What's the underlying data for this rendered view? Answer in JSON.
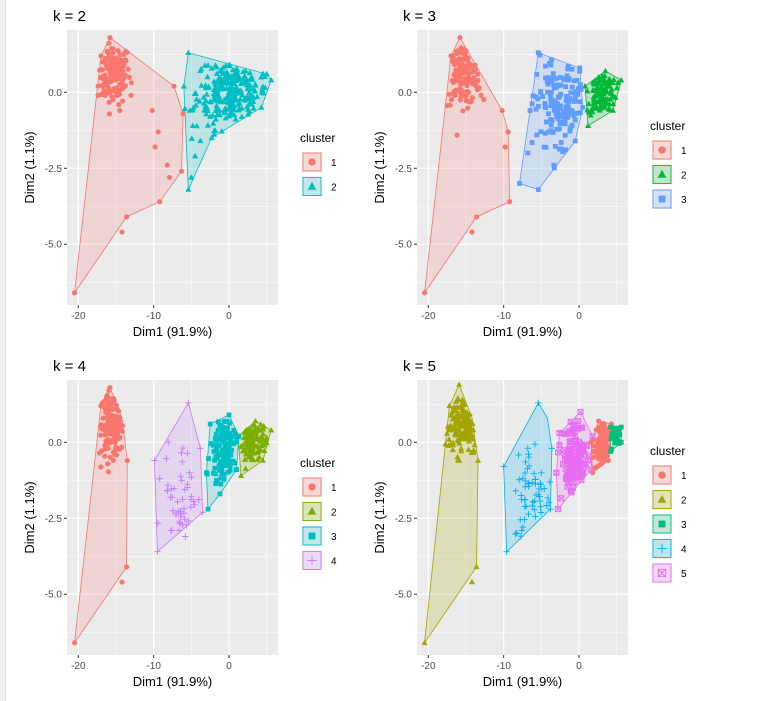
{
  "figure": {
    "x_axis": {
      "label": "Dim1 (91.9%)",
      "ticks": [
        -20,
        -10,
        0
      ],
      "range": [
        -21.5,
        6.5
      ]
    },
    "y_axis": {
      "label": "Dim2 (1.1%)",
      "ticks": [
        0.0,
        -2.5,
        -5.0
      ],
      "tick_labels": [
        "0.0",
        "-2.5",
        "-5.0"
      ],
      "range": [
        -7.0,
        2.05
      ]
    },
    "legend_title": "cluster",
    "panel_background": "#ebebeb",
    "gridline_color": "#ffffff"
  },
  "chart_data": [
    {
      "type": "scatter",
      "title": "k = 2",
      "xlabel": "Dim1 (91.9%)",
      "ylabel": "Dim2 (1.1%)",
      "xlim": [
        -21.5,
        6.5
      ],
      "ylim": [
        -7.0,
        2.05
      ],
      "grid": true,
      "legend": "right",
      "legend_entries": [
        "1",
        "2"
      ],
      "clusters": [
        {
          "name": "1",
          "color": "#F8766D",
          "shape": "circle",
          "hull": [
            [
              -20.5,
              -6.6
            ],
            [
              -13.6,
              -4.1
            ],
            [
              -9.2,
              -3.6
            ],
            [
              -6.3,
              -2.6
            ],
            [
              -6.1,
              -0.7
            ],
            [
              -7.3,
              0.2
            ],
            [
              -15.8,
              1.8
            ],
            [
              -17,
              1.2
            ]
          ],
          "blob": {
            "cx": -15.5,
            "cy": 0.6,
            "sx": 1.2,
            "sy": 0.5,
            "n": 140
          },
          "points": [
            [
              -20.5,
              -6.6
            ],
            [
              -14.2,
              -4.6
            ],
            [
              -13.6,
              -4.1
            ],
            [
              -9.2,
              -3.6
            ],
            [
              -7.9,
              -2.8
            ],
            [
              -8.2,
              -2.4
            ],
            [
              -6.3,
              -2.6
            ],
            [
              -9.8,
              -1.8
            ],
            [
              -10.2,
              -0.6
            ],
            [
              -9.4,
              -1.3
            ],
            [
              -6.1,
              -0.7
            ],
            [
              -7.3,
              0.2
            ],
            [
              -14.5,
              -0.6
            ],
            [
              -15.8,
              1.8
            ],
            [
              -17,
              1.2
            ],
            [
              -13,
              -0.1
            ]
          ]
        },
        {
          "name": "2",
          "color": "#00BFC4",
          "shape": "triangle",
          "hull": [
            [
              -5.4,
              -3.2
            ],
            [
              -2.3,
              -1.5
            ],
            [
              4.3,
              -0.5
            ],
            [
              5.6,
              0.4
            ],
            [
              5,
              0.6
            ],
            [
              -5.4,
              1.3
            ],
            [
              -6,
              0.2
            ]
          ],
          "blob": {
            "cx": 0.5,
            "cy": 0.0,
            "sx": 2.4,
            "sy": 0.6,
            "n": 260
          },
          "points": [
            [
              -5.4,
              -3.2
            ],
            [
              -5.0,
              -2.8
            ],
            [
              -4.5,
              -2.1
            ],
            [
              -3.8,
              -1.6
            ],
            [
              -2.3,
              -1.5
            ],
            [
              -6,
              0.2
            ],
            [
              -5.4,
              1.3
            ],
            [
              -5.2,
              -0.6
            ],
            [
              -4.8,
              -1.1
            ],
            [
              4.3,
              -0.5
            ],
            [
              5.6,
              0.4
            ],
            [
              5,
              0.6
            ],
            [
              -3.9,
              -0.3
            ],
            [
              -2.5,
              -0.8
            ]
          ]
        }
      ]
    },
    {
      "type": "scatter",
      "title": "k = 3",
      "xlabel": "Dim1 (91.9%)",
      "ylabel": "Dim2 (1.1%)",
      "xlim": [
        -21.5,
        6.5
      ],
      "ylim": [
        -7.0,
        2.05
      ],
      "grid": true,
      "legend": "right",
      "legend_entries": [
        "1",
        "2",
        "3"
      ],
      "clusters": [
        {
          "name": "1",
          "color": "#F8766D",
          "shape": "circle",
          "hull": [
            [
              -20.5,
              -6.6
            ],
            [
              -13.6,
              -4.1
            ],
            [
              -9.2,
              -3.6
            ],
            [
              -9.4,
              -1.3
            ],
            [
              -10.2,
              -0.6
            ],
            [
              -15.8,
              1.8
            ],
            [
              -17,
              1.2
            ]
          ],
          "blob": {
            "cx": -15.5,
            "cy": 0.6,
            "sx": 1.2,
            "sy": 0.5,
            "n": 140
          },
          "points": [
            [
              -20.5,
              -6.6
            ],
            [
              -14.2,
              -4.6
            ],
            [
              -13.6,
              -4.1
            ],
            [
              -9.2,
              -3.6
            ],
            [
              -9.8,
              -1.8
            ],
            [
              -10.2,
              -0.6
            ],
            [
              -9.4,
              -1.3
            ],
            [
              -15.8,
              1.8
            ],
            [
              -17,
              1.2
            ],
            [
              -13,
              -0.1
            ]
          ]
        },
        {
          "name": "2",
          "color": "#00BA38",
          "shape": "triangle",
          "hull": [
            [
              1.2,
              -1.1
            ],
            [
              4.5,
              -0.6
            ],
            [
              5.6,
              0.4
            ],
            [
              3.5,
              0.7
            ],
            [
              0.8,
              0.2
            ]
          ],
          "blob": {
            "cx": 3.0,
            "cy": 0.0,
            "sx": 1.0,
            "sy": 0.4,
            "n": 120
          },
          "points": [
            [
              1.2,
              -1.1
            ],
            [
              4.5,
              -0.6
            ],
            [
              5.6,
              0.4
            ],
            [
              3.5,
              0.7
            ],
            [
              0.8,
              0.2
            ]
          ]
        },
        {
          "name": "3",
          "color": "#619CFF",
          "shape": "square",
          "hull": [
            [
              -7.9,
              -3.0
            ],
            [
              -5.4,
              -3.2
            ],
            [
              -0.5,
              -1.6
            ],
            [
              0.5,
              -0.5
            ],
            [
              0.1,
              0.8
            ],
            [
              -5.4,
              1.3
            ],
            [
              -6.5,
              -0.6
            ]
          ],
          "blob": {
            "cx": -2.2,
            "cy": -0.5,
            "sx": 1.8,
            "sy": 0.9,
            "n": 150
          },
          "points": [
            [
              -7.9,
              -3.0
            ],
            [
              -5.4,
              -3.2
            ],
            [
              -0.5,
              -1.6
            ],
            [
              0.5,
              -0.5
            ],
            [
              0.1,
              0.8
            ],
            [
              -5.4,
              1.3
            ],
            [
              -6.5,
              -0.6
            ],
            [
              -6.8,
              -2.0
            ],
            [
              -5.6,
              -1.4
            ]
          ]
        }
      ]
    },
    {
      "type": "scatter",
      "title": "k = 4",
      "xlabel": "Dim1 (91.9%)",
      "ylabel": "Dim2 (1.1%)",
      "xlim": [
        -21.5,
        6.5
      ],
      "ylim": [
        -7.0,
        2.05
      ],
      "grid": true,
      "legend": "right",
      "legend_entries": [
        "1",
        "2",
        "3",
        "4"
      ],
      "clusters": [
        {
          "name": "1",
          "color": "#F8766D",
          "shape": "circle",
          "hull": [
            [
              -20.5,
              -6.6
            ],
            [
              -13.6,
              -4.1
            ],
            [
              -13.5,
              -0.6
            ],
            [
              -14.2,
              0.8
            ],
            [
              -15.8,
              1.8
            ],
            [
              -17,
              1.2
            ]
          ],
          "blob": {
            "cx": -15.5,
            "cy": 0.6,
            "sx": 1.1,
            "sy": 0.5,
            "n": 140
          },
          "points": [
            [
              -20.5,
              -6.6
            ],
            [
              -14.2,
              -4.6
            ],
            [
              -13.6,
              -4.1
            ],
            [
              -13.5,
              -0.6
            ],
            [
              -15.8,
              1.8
            ],
            [
              -17,
              1.2
            ]
          ]
        },
        {
          "name": "2",
          "color": "#7CAE00",
          "shape": "triangle",
          "hull": [
            [
              1.6,
              -1.1
            ],
            [
              4.5,
              -0.6
            ],
            [
              5.6,
              0.4
            ],
            [
              3.5,
              0.7
            ],
            [
              1.2,
              0.2
            ]
          ],
          "blob": {
            "cx": 3.2,
            "cy": 0.0,
            "sx": 0.9,
            "sy": 0.4,
            "n": 110
          },
          "points": [
            [
              1.6,
              -1.1
            ],
            [
              4.5,
              -0.6
            ],
            [
              5.6,
              0.4
            ],
            [
              3.5,
              0.7
            ],
            [
              1.2,
              0.2
            ]
          ]
        },
        {
          "name": "3",
          "color": "#00BFC4",
          "shape": "square",
          "hull": [
            [
              -2.8,
              -2.2
            ],
            [
              -1.2,
              -1.7
            ],
            [
              1.0,
              -0.9
            ],
            [
              1.3,
              0.2
            ],
            [
              0.0,
              0.9
            ],
            [
              -2.5,
              0.6
            ],
            [
              -3.0,
              -1.0
            ]
          ],
          "blob": {
            "cx": -0.7,
            "cy": -0.4,
            "sx": 0.9,
            "sy": 0.7,
            "n": 120
          },
          "points": [
            [
              -2.8,
              -2.2
            ],
            [
              -1.2,
              -1.7
            ],
            [
              1.0,
              -0.9
            ],
            [
              1.3,
              0.2
            ],
            [
              0.0,
              0.9
            ],
            [
              -2.5,
              0.6
            ],
            [
              -3.0,
              -1.0
            ]
          ]
        },
        {
          "name": "4",
          "color": "#C77CFF",
          "shape": "plus",
          "hull": [
            [
              -9.5,
              -3.6
            ],
            [
              -3.5,
              -2.3
            ],
            [
              -3.8,
              -0.2
            ],
            [
              -5.4,
              1.3
            ],
            [
              -9.9,
              -0.6
            ]
          ],
          "blob": {
            "cx": -6.0,
            "cy": -1.6,
            "sx": 1.3,
            "sy": 0.9,
            "n": 45
          },
          "points": [
            [
              -9.5,
              -3.6
            ],
            [
              -3.5,
              -2.3
            ],
            [
              -3.8,
              -0.2
            ],
            [
              -5.4,
              1.3
            ],
            [
              -9.9,
              -0.6
            ],
            [
              -9.2,
              -1.2
            ],
            [
              -7.6,
              -2.9
            ],
            [
              -8.2,
              -1.6
            ],
            [
              -5.8,
              -3.1
            ]
          ]
        }
      ]
    },
    {
      "type": "scatter",
      "title": "k = 5",
      "xlabel": "Dim1 (91.9%)",
      "ylabel": "Dim2 (1.1%)",
      "xlim": [
        -21.5,
        6.5
      ],
      "ylim": [
        -7.0,
        2.05
      ],
      "grid": true,
      "legend": "right",
      "legend_entries": [
        "1",
        "2",
        "3",
        "4",
        "5"
      ],
      "clusters": [
        {
          "name": "1",
          "color": "#F8766D",
          "shape": "circle",
          "hull": [
            [
              1.8,
              -1.0
            ],
            [
              3.9,
              -0.6
            ],
            [
              4.3,
              0.6
            ],
            [
              2.6,
              0.7
            ],
            [
              1.6,
              0.0
            ]
          ],
          "blob": {
            "cx": 3.0,
            "cy": -0.1,
            "sx": 0.6,
            "sy": 0.4,
            "n": 110
          },
          "points": [
            [
              1.8,
              -1.0
            ],
            [
              3.9,
              -0.6
            ],
            [
              4.3,
              0.6
            ],
            [
              2.6,
              0.7
            ],
            [
              1.6,
              0.0
            ]
          ]
        },
        {
          "name": "2",
          "color": "#A3A500",
          "shape": "triangle",
          "hull": [
            [
              -20.5,
              -6.6
            ],
            [
              -13.6,
              -4.1
            ],
            [
              -13.4,
              -0.6
            ],
            [
              -14.2,
              0.8
            ],
            [
              -15.9,
              1.9
            ],
            [
              -17.2,
              1.2
            ]
          ],
          "blob": {
            "cx": -15.5,
            "cy": 0.6,
            "sx": 1.1,
            "sy": 0.5,
            "n": 140
          },
          "points": [
            [
              -20.5,
              -6.6
            ],
            [
              -14.2,
              -4.6
            ],
            [
              -13.6,
              -4.1
            ],
            [
              -13.4,
              -0.6
            ],
            [
              -15.9,
              1.9
            ],
            [
              -17.2,
              1.2
            ]
          ]
        },
        {
          "name": "3",
          "color": "#00BF7D",
          "shape": "square",
          "hull": [
            [
              4.2,
              -0.3
            ],
            [
              5.6,
              0.0
            ],
            [
              5.6,
              0.5
            ],
            [
              4.2,
              0.5
            ]
          ],
          "blob": {
            "cx": 4.9,
            "cy": 0.2,
            "sx": 0.35,
            "sy": 0.2,
            "n": 40
          },
          "points": [
            [
              4.2,
              -0.3
            ],
            [
              5.6,
              0.0
            ],
            [
              5.6,
              0.5
            ],
            [
              4.2,
              0.5
            ]
          ]
        },
        {
          "name": "4",
          "color": "#00B0F6",
          "shape": "plus",
          "hull": [
            [
              -9.6,
              -3.6
            ],
            [
              -3.8,
              -2.2
            ],
            [
              -3.6,
              -0.2
            ],
            [
              -4.2,
              0.8
            ],
            [
              -5.4,
              1.3
            ],
            [
              -10.0,
              -0.8
            ]
          ],
          "blob": {
            "cx": -6.0,
            "cy": -1.6,
            "sx": 1.3,
            "sy": 0.9,
            "n": 55
          },
          "points": [
            [
              -9.6,
              -3.6
            ],
            [
              -3.8,
              -2.2
            ],
            [
              -3.6,
              -0.2
            ],
            [
              -5.4,
              1.3
            ],
            [
              -10.0,
              -0.8
            ],
            [
              -7.6,
              -2.9
            ],
            [
              -8.4,
              -1.6
            ]
          ]
        },
        {
          "name": "5",
          "color": "#E76BF3",
          "shape": "square-cross",
          "hull": [
            [
              -2.8,
              -2.2
            ],
            [
              1.6,
              -0.9
            ],
            [
              1.8,
              0.2
            ],
            [
              0.2,
              1.0
            ],
            [
              -2.6,
              0.3
            ],
            [
              -3.0,
              -1.0
            ]
          ],
          "blob": {
            "cx": -0.7,
            "cy": -0.6,
            "sx": 0.9,
            "sy": 0.7,
            "n": 120
          },
          "points": [
            [
              -2.8,
              -2.2
            ],
            [
              1.6,
              -0.9
            ],
            [
              1.8,
              0.2
            ],
            [
              0.2,
              1.0
            ],
            [
              -2.6,
              0.3
            ],
            [
              -3.0,
              -1.0
            ]
          ]
        }
      ]
    }
  ]
}
